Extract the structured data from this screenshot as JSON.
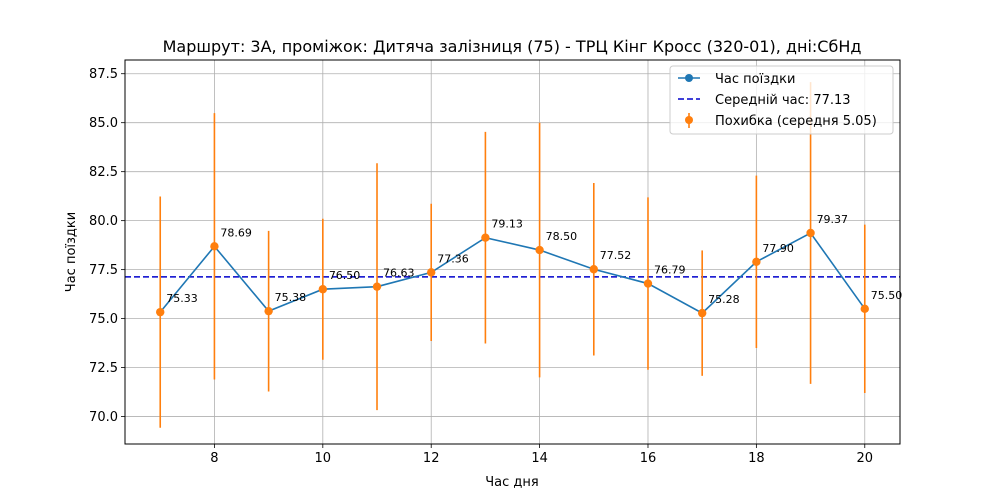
{
  "chart_data": {
    "type": "line",
    "title": "Маршрут: 3А, проміжок: Дитяча залізниця (75) - ТРЦ Кінг Кросс (320-01), дні:СбНд",
    "xlabel": "Час дня",
    "ylabel": "Час поїздки",
    "xlim": [
      6.35,
      20.65
    ],
    "ylim": [
      68.6,
      88.2
    ],
    "x_ticks": [
      8,
      10,
      12,
      14,
      16,
      18,
      20
    ],
    "y_ticks": [
      70.0,
      72.5,
      75.0,
      77.5,
      80.0,
      82.5,
      85.0,
      87.5
    ],
    "grid": true,
    "legend_position": "top-right",
    "x": [
      7,
      8,
      9,
      10,
      11,
      12,
      13,
      14,
      15,
      16,
      17,
      18,
      19,
      20
    ],
    "series": [
      {
        "name": "Час поїздки",
        "color": "#1f77b4",
        "values": [
          75.33,
          78.69,
          75.38,
          76.5,
          76.63,
          77.36,
          79.13,
          78.5,
          77.52,
          76.79,
          75.28,
          77.9,
          79.37,
          75.5
        ]
      }
    ],
    "data_labels": [
      "75.33",
      "78.69",
      "75.38",
      "76.50",
      "76.63",
      "77.36",
      "79.13",
      "78.50",
      "77.52",
      "76.79",
      "75.28",
      "77.90",
      "79.37",
      "75.50"
    ],
    "error_bars": {
      "name": "Похибка (середня 5.05)",
      "color": "#ff7f0e",
      "errors": [
        5.9,
        6.8,
        4.1,
        3.6,
        6.3,
        3.5,
        5.4,
        6.5,
        4.4,
        4.4,
        3.2,
        4.4,
        7.7,
        4.3
      ]
    },
    "mean_line": {
      "name": "Середній час: 77.13",
      "value": 77.13,
      "color": "#0000cc"
    }
  }
}
